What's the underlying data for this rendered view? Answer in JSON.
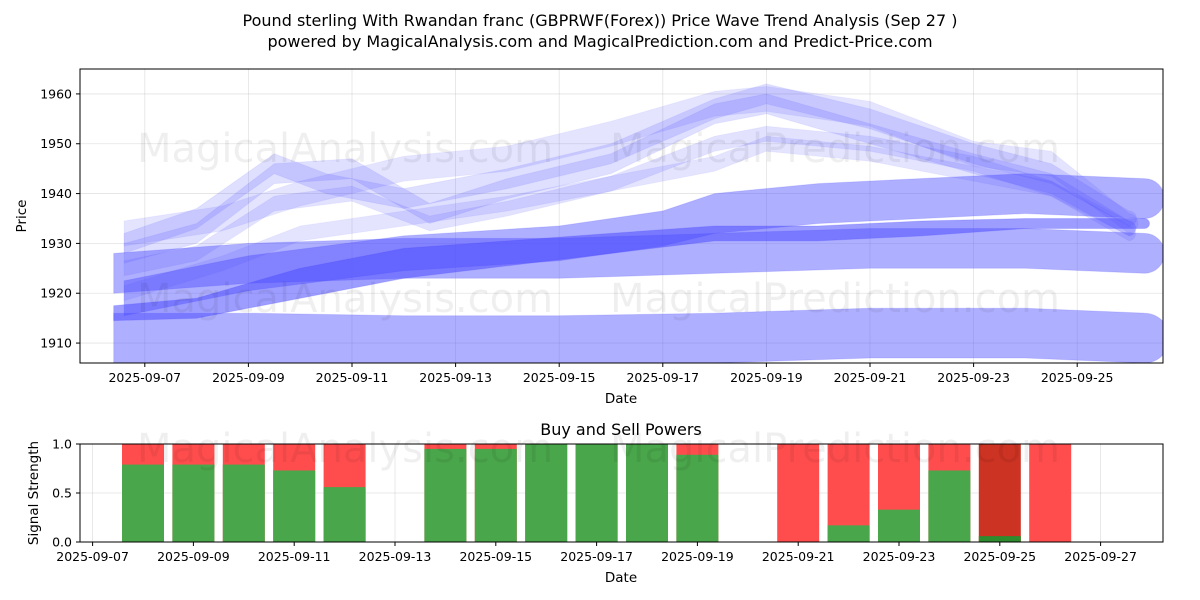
{
  "title_line1": "Pound sterling With Rwandan franc (GBPRWF(Forex)) Price Wave Trend Analysis (Sep 27 )",
  "title_line2": "powered by MagicalAnalysis.com and MagicalPrediction.com and Predict-Price.com",
  "watermarks": [
    "MagicalAnalysis.com",
    "MagicalPrediction.com"
  ],
  "colors": {
    "band": "#4d4dff",
    "buy": "#4aa64a",
    "sell": "#ff4d4d",
    "sell_dark": "#cc3322",
    "buy_dark": "#2e8b2e"
  },
  "chart_data": [
    {
      "type": "area",
      "title": "",
      "xlabel": "Date",
      "ylabel": "Price",
      "x_tick_labels": [
        "2025-09-07",
        "2025-09-09",
        "2025-09-11",
        "2025-09-13",
        "2025-09-15",
        "2025-09-17",
        "2025-09-19",
        "2025-09-21",
        "2025-09-23",
        "2025-09-25"
      ],
      "y_ticks": [
        1910,
        1920,
        1930,
        1940,
        1950,
        1960
      ],
      "ylim": [
        1906,
        1965
      ],
      "x_domain_days": [
        0,
        21.0
      ],
      "grid": true,
      "x_origin": "2025-09-06",
      "bands": [
        {
          "name": "lower-wide",
          "x": [
            0.4,
            3,
            6,
            9,
            12,
            15,
            18,
            20.3
          ],
          "mid": [
            1911,
            1911,
            1910.5,
            1910.5,
            1911,
            1912,
            1912,
            1911
          ],
          "width": [
            10,
            10,
            10,
            10,
            10,
            10,
            10,
            10
          ],
          "opacity": 0.45
        },
        {
          "name": "mid-wide",
          "x": [
            0.4,
            3,
            6,
            9,
            12,
            15,
            18,
            20.3
          ],
          "mid": [
            1924,
            1926,
            1927,
            1927,
            1928,
            1929,
            1929,
            1928
          ],
          "width": [
            8,
            8,
            8,
            8,
            8,
            8,
            8,
            8
          ],
          "opacity": 0.45
        },
        {
          "name": "upper-wide",
          "x": [
            0.6,
            3,
            6,
            9,
            11,
            12,
            14,
            18,
            20.3
          ],
          "mid": [
            1919,
            1924,
            1928,
            1930,
            1933,
            1936,
            1938,
            1940,
            1939
          ],
          "width": [
            7,
            7,
            7,
            7,
            7,
            8,
            8,
            8,
            8
          ],
          "opacity": 0.45
        },
        {
          "name": "core",
          "x": [
            0.4,
            2,
            4,
            6,
            8,
            10,
            12,
            14,
            16,
            18,
            20.3
          ],
          "mid": [
            1916,
            1917,
            1922,
            1926,
            1928,
            1930,
            1932,
            1932,
            1933,
            1934,
            1934
          ],
          "width": [
            3,
            4,
            6,
            6,
            5,
            4,
            3,
            3,
            3,
            2,
            2
          ],
          "opacity": 0.55
        },
        {
          "name": "wave-a",
          "x": [
            0.6,
            2,
            3.5,
            4.5,
            6,
            8,
            10,
            12,
            13,
            15,
            17,
            18.5,
            20
          ],
          "mid": [
            1930,
            1935,
            1946,
            1942,
            1939,
            1943,
            1948,
            1957,
            1960,
            1955,
            1948,
            1944,
            1935
          ],
          "width": [
            4,
            4,
            4,
            4,
            4,
            4,
            4,
            4,
            4,
            4,
            4,
            4,
            3
          ],
          "opacity": 0.18
        },
        {
          "name": "wave-b",
          "x": [
            0.6,
            2,
            3.5,
            5,
            6.5,
            8,
            10,
            12,
            13,
            15,
            17,
            18.5,
            20
          ],
          "mid": [
            1928,
            1932,
            1944,
            1945,
            1936,
            1941,
            1946,
            1956,
            1958,
            1952,
            1946,
            1942,
            1933
          ],
          "width": [
            4,
            4,
            4,
            4,
            4,
            4,
            4,
            4,
            4,
            4,
            4,
            4,
            3
          ],
          "opacity": 0.18
        },
        {
          "name": "wave-c",
          "x": [
            0.6,
            2,
            3.5,
            5,
            6.5,
            8,
            10,
            12,
            13,
            15,
            17,
            18.5,
            20
          ],
          "mid": [
            1925,
            1928,
            1938,
            1940,
            1934,
            1937,
            1942,
            1950,
            1952,
            1950,
            1946,
            1941,
            1932
          ],
          "width": [
            3,
            3,
            3,
            3,
            3,
            3,
            3,
            3,
            3,
            3,
            3,
            3,
            3
          ],
          "opacity": 0.16
        },
        {
          "name": "wave-d",
          "x": [
            0.6,
            2.5,
            4,
            6,
            8,
            10,
            12,
            13,
            15,
            17,
            18.5,
            20
          ],
          "mid": [
            1932,
            1935,
            1940,
            1945,
            1947,
            1952,
            1958,
            1959,
            1956,
            1948,
            1946,
            1934
          ],
          "width": [
            5,
            5,
            5,
            5,
            5,
            5,
            5,
            5,
            5,
            5,
            5,
            4
          ],
          "opacity": 0.15
        },
        {
          "name": "wave-e",
          "x": [
            0.6,
            2.5,
            4,
            6,
            8,
            10,
            12,
            13,
            15,
            17,
            18.5,
            20
          ],
          "mid": [
            1920,
            1926,
            1932,
            1935,
            1938,
            1942,
            1946,
            1950,
            1948,
            1944,
            1941,
            1933
          ],
          "width": [
            3,
            3,
            3,
            3,
            3,
            3,
            3,
            3,
            3,
            3,
            3,
            3
          ],
          "opacity": 0.15
        }
      ]
    },
    {
      "type": "bar",
      "title": "Buy and Sell Powers",
      "xlabel": "Date",
      "ylabel": "Signal Strength",
      "x_tick_labels": [
        "2025-09-07",
        "2025-09-09",
        "2025-09-11",
        "2025-09-13",
        "2025-09-15",
        "2025-09-17",
        "2025-09-19",
        "2025-09-21",
        "2025-09-23",
        "2025-09-25",
        "2025-09-27"
      ],
      "y_ticks": [
        0.0,
        0.5,
        1.0
      ],
      "y_tick_labels": [
        "0.0",
        "0.5",
        "1.0"
      ],
      "ylim": [
        0,
        1
      ],
      "x_domain_days": [
        0,
        21.5
      ],
      "x_origin": "2025-09-06.75",
      "categories": [
        "2025-09-08",
        "2025-09-09",
        "2025-09-10",
        "2025-09-11",
        "2025-09-12",
        "2025-09-14",
        "2025-09-15",
        "2025-09-16",
        "2025-09-17",
        "2025-09-18",
        "2025-09-19",
        "2025-09-21",
        "2025-09-22",
        "2025-09-23",
        "2025-09-24",
        "2025-09-25",
        "2025-09-26"
      ],
      "day_index": [
        1.25,
        2.25,
        3.25,
        4.25,
        5.25,
        7.25,
        8.25,
        9.25,
        10.25,
        11.25,
        12.25,
        14.25,
        15.25,
        16.25,
        17.25,
        18.25,
        19.25
      ],
      "series": [
        {
          "name": "Buy",
          "values": [
            0.79,
            0.79,
            0.79,
            0.73,
            0.56,
            0.95,
            0.95,
            1.0,
            1.0,
            1.0,
            0.89,
            0.0,
            0.17,
            0.33,
            0.73,
            0.06,
            0.0
          ]
        },
        {
          "name": "Sell",
          "values": [
            0.21,
            0.21,
            0.21,
            0.27,
            0.44,
            0.05,
            0.05,
            0.0,
            0.0,
            0.0,
            0.11,
            1.0,
            0.83,
            0.67,
            0.27,
            0.94,
            1.0
          ]
        }
      ]
    }
  ]
}
